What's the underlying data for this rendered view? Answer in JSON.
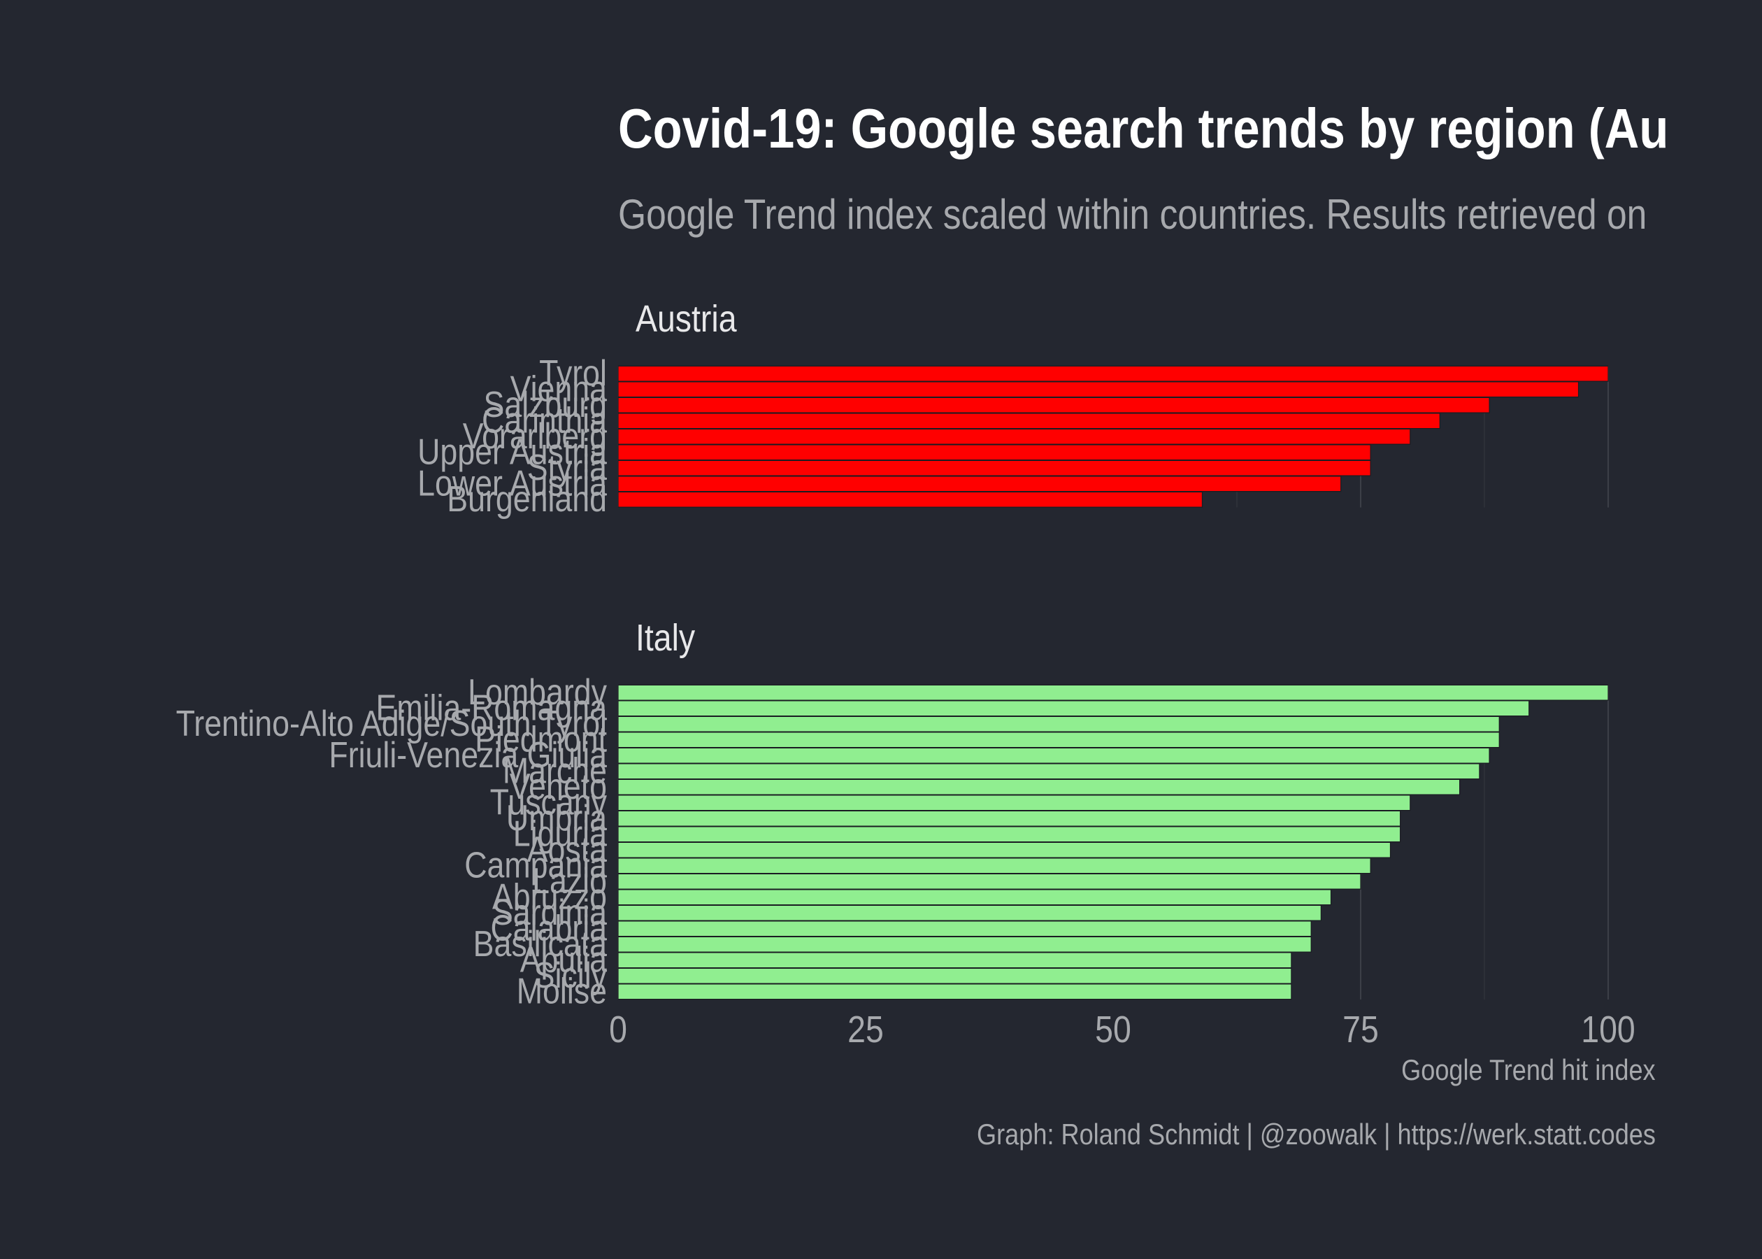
{
  "chart_data": {
    "type": "bar",
    "orientation": "horizontal",
    "title": "Covid-19: Google search trends by region (Au",
    "subtitle": "Google Trend index scaled within countries. Results retrieved on",
    "xlabel": "Google Trend hit index",
    "caption": "Graph: Roland Schmidt | @zoowalk | https://werk.statt.codes",
    "xlim": [
      0,
      100
    ],
    "x_ticks": [
      "0",
      "25",
      "50",
      "75",
      "100"
    ],
    "grid": true,
    "legend": "none",
    "background": "#242730",
    "panels": [
      {
        "name": "Austria",
        "color": "#ff0000",
        "categories": [
          "Tyrol",
          "Vienna",
          "Salzburg",
          "Carinthia",
          "Vorarlberg",
          "Upper Austria",
          "Styria",
          "Lower Austria",
          "Burgenland"
        ],
        "values": [
          100,
          97,
          88,
          83,
          80,
          76,
          76,
          73,
          59
        ]
      },
      {
        "name": "Italy",
        "color": "#90ee90",
        "categories": [
          "Lombardy",
          "Emilia-Romagna",
          "Trentino-Alto Adige/South Tyrol",
          "Piedmont",
          "Friuli-Venezia Giulia",
          "Marche",
          "Veneto",
          "Tuscany",
          "Umbria",
          "Liguria",
          "Aosta",
          "Campania",
          "Lazio",
          "Abruzzo",
          "Sardinia",
          "Calabria",
          "Basilicata",
          "Apulia",
          "Sicily",
          "Molise"
        ],
        "values": [
          100,
          92,
          89,
          89,
          88,
          87,
          85,
          80,
          79,
          79,
          78,
          76,
          75,
          72,
          71,
          70,
          70,
          68,
          68,
          68
        ]
      }
    ]
  }
}
